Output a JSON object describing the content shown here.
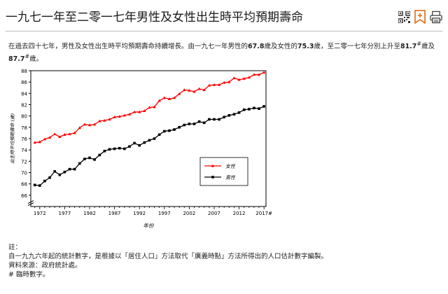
{
  "page": {
    "title": "一九七一年至二零一七年男性及女性出生時平均預期壽命",
    "icons": [
      "qr-code-icon",
      "bookmark-icon",
      "print-icon"
    ]
  },
  "intro": {
    "p1": "在過去四十七年，男性及女性出生時平均預期壽命持續增長。由一九七一年男性的",
    "v1": "67.8",
    "p2": "歲及女性的",
    "v2": "75.3",
    "p3": "歲，至二零一七年分別上升至",
    "v3": "81.7",
    "sup1": "#",
    "p4": "歲及",
    "v4": "87.7",
    "sup2": "#",
    "p5": "歲。"
  },
  "chart_data": {
    "type": "line",
    "ylabel": "出生時平均預期壽命 (歲)",
    "xlabel": "年份",
    "ylim": [
      64,
      88
    ],
    "y_ticks": [
      66,
      68,
      70,
      72,
      74,
      76,
      78,
      80,
      82,
      84,
      86,
      88
    ],
    "x_ticks": [
      {
        "year": 1972,
        "label": "1972"
      },
      {
        "year": 1977,
        "label": "1977"
      },
      {
        "year": 1982,
        "label": "1982"
      },
      {
        "year": 1987,
        "label": "1987"
      },
      {
        "year": 1992,
        "label": "1992"
      },
      {
        "year": 1997,
        "label": "1997"
      },
      {
        "year": 2002,
        "label": "2002"
      },
      {
        "year": 2007,
        "label": "2007"
      },
      {
        "year": 2012,
        "label": "2012"
      },
      {
        "year": 2017,
        "label": "2017#"
      }
    ],
    "x": [
      1971,
      1972,
      1973,
      1974,
      1975,
      1976,
      1977,
      1978,
      1979,
      1980,
      1981,
      1982,
      1983,
      1984,
      1985,
      1986,
      1987,
      1988,
      1989,
      1990,
      1991,
      1992,
      1993,
      1994,
      1995,
      1996,
      1997,
      1998,
      1999,
      2000,
      2001,
      2002,
      2003,
      2004,
      2005,
      2006,
      2007,
      2008,
      2009,
      2010,
      2011,
      2012,
      2013,
      2014,
      2015,
      2016,
      2017
    ],
    "series": [
      {
        "name": "女性",
        "color": "#ff0000",
        "marker": "triangle",
        "values": [
          75.3,
          75.4,
          75.9,
          76.2,
          76.8,
          76.3,
          76.7,
          76.8,
          77.0,
          77.9,
          78.5,
          78.4,
          78.5,
          79.1,
          79.2,
          79.4,
          79.8,
          79.9,
          80.1,
          80.3,
          80.7,
          80.7,
          80.9,
          81.5,
          81.6,
          82.7,
          83.2,
          83.0,
          83.2,
          83.9,
          84.6,
          84.5,
          84.3,
          84.8,
          84.6,
          85.4,
          85.5,
          85.5,
          85.9,
          86.0,
          86.7,
          86.4,
          86.6,
          86.8,
          87.3,
          87.3,
          87.7
        ]
      },
      {
        "name": "男性",
        "color": "#000000",
        "marker": "square",
        "values": [
          67.8,
          67.7,
          68.5,
          69.1,
          70.2,
          69.6,
          70.1,
          70.6,
          70.6,
          71.6,
          72.4,
          72.6,
          72.3,
          73.1,
          73.8,
          74.1,
          74.2,
          74.3,
          74.2,
          74.6,
          75.2,
          74.8,
          75.3,
          75.7,
          76.0,
          76.7,
          77.3,
          77.4,
          77.6,
          78.0,
          78.4,
          78.6,
          78.6,
          79.0,
          78.8,
          79.4,
          79.4,
          79.4,
          79.8,
          80.1,
          80.3,
          80.6,
          81.1,
          81.2,
          81.4,
          81.3,
          81.7
        ]
      }
    ],
    "legend_position": "lower-right"
  },
  "notes": {
    "heading": "註：",
    "line1": "自一九九六年起的統計數字，是根據以「居住人口」方法取代「廣義時點」方法所得出的人口估計數字編製。",
    "line2": "資料來源：政府統計處。",
    "line3": "# 臨時數字。"
  }
}
